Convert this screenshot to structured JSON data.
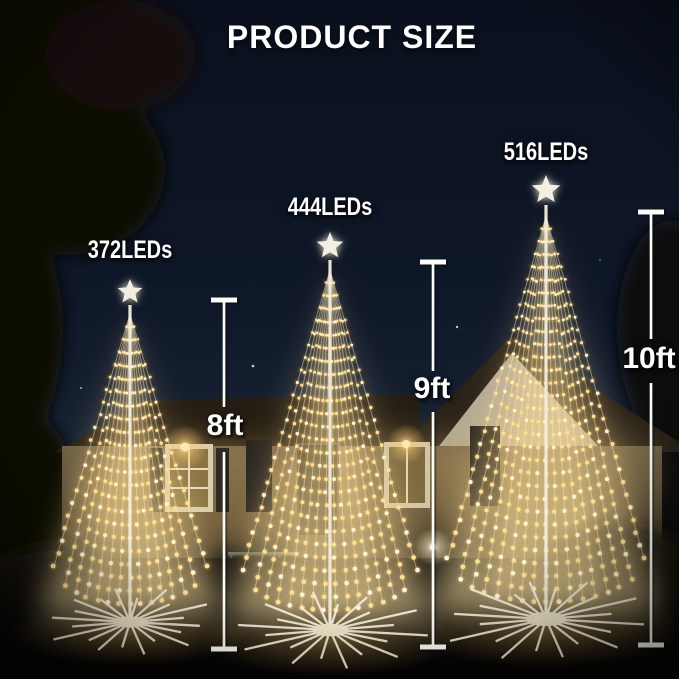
{
  "title": "PRODUCT SIZE",
  "products": [
    {
      "leds": "372LEDs",
      "height": "8ft"
    },
    {
      "leds": "444LEDs",
      "height": "9ft"
    },
    {
      "leds": "516LEDs",
      "height": "10ft"
    }
  ],
  "colors": {
    "text": "#ffffff",
    "led_warm": "#ffdf96",
    "led_bright": "#fff4d2",
    "structure_white": "#f2eddc",
    "sky_top": "#0a101d",
    "sky_horizon": "#202c3a"
  }
}
